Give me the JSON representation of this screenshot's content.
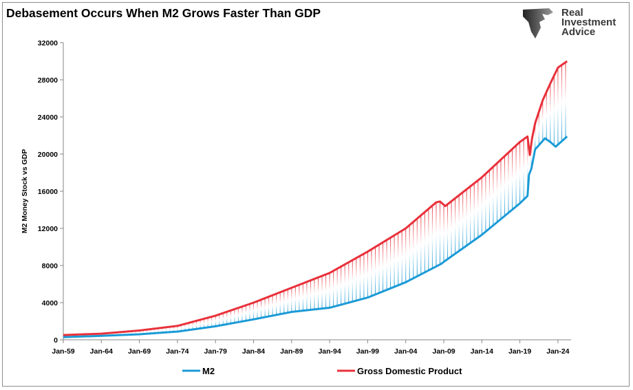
{
  "chart_data": {
    "type": "line",
    "title": "Debasement Occurs When M2 Grows Faster Than GDP",
    "xlabel": "",
    "ylabel": "M2 Money Stock vs GDP",
    "ylim": [
      0,
      32000
    ],
    "xlim": [
      1959,
      2025.3
    ],
    "yticks": [
      "0",
      "4000",
      "8000",
      "12000",
      "16000",
      "20000",
      "24000",
      "28000",
      "32000"
    ],
    "xticks": [
      "Jan-59",
      "Jan-64",
      "Jan-69",
      "Jan-74",
      "Jan-79",
      "Jan-84",
      "Jan-89",
      "Jan-94",
      "Jan-99",
      "Jan-04",
      "Jan-09",
      "Jan-14",
      "Jan-19",
      "Jan-24"
    ],
    "grid": false,
    "legend": "bottom",
    "series": [
      {
        "name": "M2",
        "color": "#1a9ad6",
        "x": [
          1959,
          1964,
          1969,
          1974,
          1979,
          1984,
          1989,
          1994,
          1999,
          2004,
          2008.7,
          2009,
          2014,
          2019,
          2020.0,
          2020.2,
          2020.5,
          2021,
          2022.3,
          2023.0,
          2023.7,
          2025.2
        ],
        "y": [
          290,
          420,
          590,
          880,
          1450,
          2200,
          3000,
          3450,
          4550,
          6200,
          8200,
          8400,
          11300,
          14700,
          15500,
          17800,
          18400,
          20500,
          21700,
          21300,
          20800,
          21900
        ]
      },
      {
        "name": "Gross Domestic Product",
        "color": "#e8303a",
        "x": [
          1959,
          1964,
          1969,
          1974,
          1979,
          1984,
          1989,
          1994,
          1999,
          2004,
          2008.0,
          2008.5,
          2009.2,
          2014,
          2019,
          2020.0,
          2020.3,
          2020.6,
          2021,
          2022,
          2023,
          2024,
          2025.2
        ],
        "y": [
          510,
          660,
          1000,
          1500,
          2600,
          4000,
          5600,
          7200,
          9500,
          12000,
          14800,
          14900,
          14400,
          17500,
          21300,
          21900,
          19900,
          21700,
          23300,
          25800,
          27600,
          29300,
          30000
        ]
      }
    ]
  },
  "logo": {
    "text": "Real Investment Advice",
    "line1": "Real",
    "line2": "Investment",
    "line3": "Advice"
  }
}
